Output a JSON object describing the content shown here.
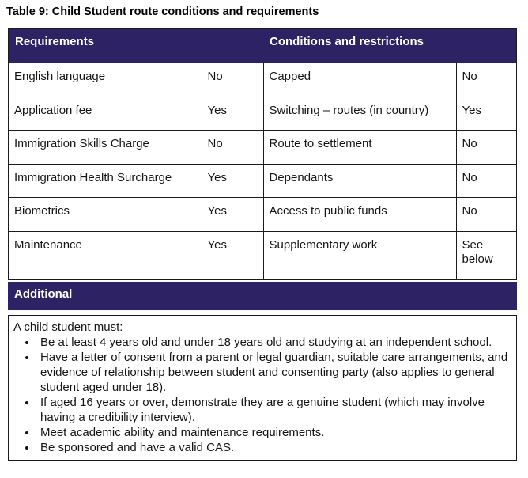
{
  "title": "Table 9: Child Student route conditions and requirements",
  "colors": {
    "header_bg": "#2d2263",
    "border": "#1b1b1b"
  },
  "table": {
    "headers": [
      "Requirements",
      "Conditions and restrictions"
    ],
    "rows": [
      {
        "requirement": "English language",
        "requirement_value": "No",
        "condition": "Capped",
        "condition_value": "No"
      },
      {
        "requirement": "Application fee",
        "requirement_value": "Yes",
        "condition": "Switching – routes (in country)",
        "condition_value": "Yes"
      },
      {
        "requirement": "Immigration Skills Charge",
        "requirement_value": "No",
        "condition": "Route to settlement",
        "condition_value": "No"
      },
      {
        "requirement": "Immigration Health Surcharge",
        "requirement_value": "Yes",
        "condition": "Dependants",
        "condition_value": "No"
      },
      {
        "requirement": "Biometrics",
        "requirement_value": "Yes",
        "condition": "Access to public funds",
        "condition_value": "No"
      },
      {
        "requirement": "Maintenance",
        "requirement_value": "Yes",
        "condition": "Supplementary work",
        "condition_value": "See below"
      }
    ]
  },
  "additional": {
    "header": "Additional",
    "intro": "A child student must:",
    "bullets": [
      "Be at least 4 years old and under 18 years old and studying at an independent school.",
      "Have a letter of consent from a parent or legal guardian, suitable care arrangements, and evidence of relationship between student and consenting party (also applies to general student aged under 18).",
      "If aged 16 years or over, demonstrate they are a genuine student (which may involve having a credibility interview).",
      "Meet academic ability and maintenance requirements.",
      "Be sponsored and have a valid CAS."
    ]
  }
}
